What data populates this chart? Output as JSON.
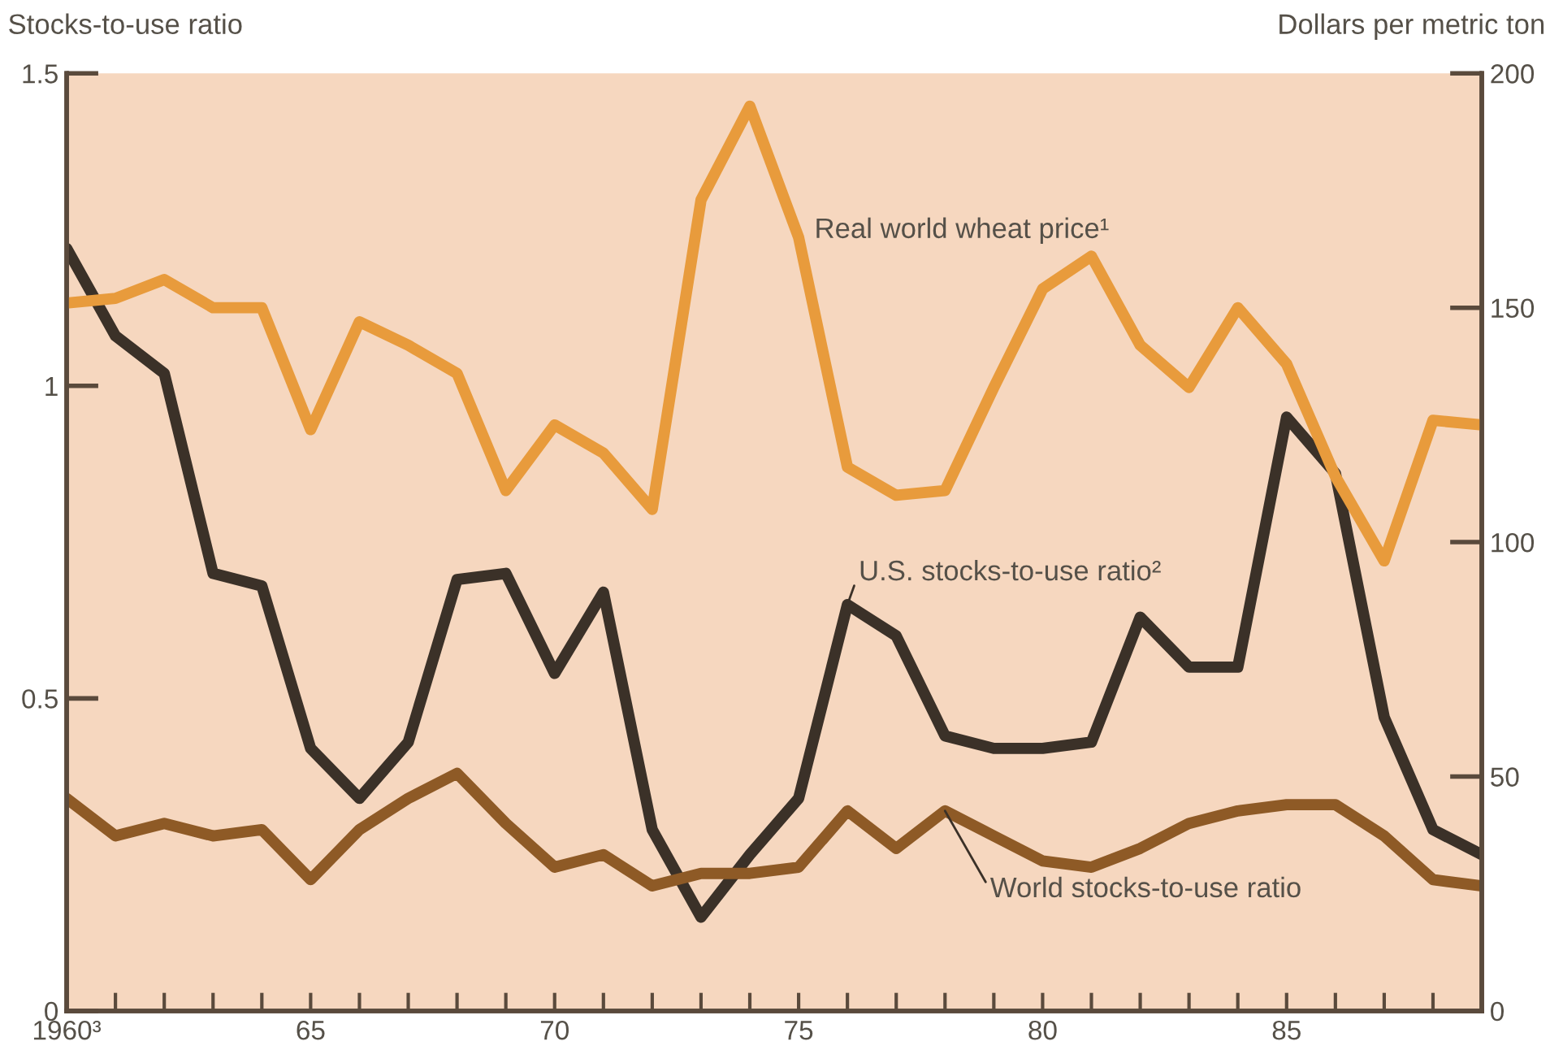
{
  "chart_data": {
    "type": "line",
    "ylabel": "Stocks-to-use ratio",
    "y2label": "Dollars per metric ton",
    "x": [
      1960,
      1961,
      1962,
      1963,
      1964,
      1965,
      1966,
      1967,
      1968,
      1969,
      1970,
      1971,
      1972,
      1973,
      1974,
      1975,
      1976,
      1977,
      1978,
      1979,
      1980,
      1981,
      1982,
      1983,
      1984,
      1985,
      1986,
      1987,
      1988,
      1989
    ],
    "series": [
      {
        "name": "Real world wheat price¹",
        "color": "#e89b3c",
        "axis": "y2",
        "values": [
          151,
          152,
          156,
          150,
          150,
          124,
          147,
          142,
          136,
          111,
          125,
          119,
          107,
          173,
          193,
          165,
          116,
          110,
          111,
          133,
          154,
          161,
          142,
          133,
          150,
          138,
          114,
          96,
          126,
          125
        ]
      },
      {
        "name": "U.S. stocks-to-use ratio²",
        "color": "#3b3128",
        "values": [
          1.22,
          1.08,
          1.02,
          0.7,
          0.68,
          0.42,
          0.34,
          0.43,
          0.69,
          0.7,
          0.54,
          0.67,
          0.29,
          0.15,
          0.25,
          0.34,
          0.65,
          0.6,
          0.44,
          0.42,
          0.42,
          0.43,
          0.63,
          0.55,
          0.55,
          0.95,
          0.86,
          0.47,
          0.29,
          0.25
        ]
      },
      {
        "name": "World stocks-to-use ratio",
        "color": "#8e5a26",
        "values": [
          0.34,
          0.28,
          0.3,
          0.28,
          0.29,
          0.21,
          0.29,
          0.34,
          0.38,
          0.3,
          0.23,
          0.25,
          0.2,
          0.22,
          0.22,
          0.23,
          0.32,
          0.26,
          0.32,
          0.28,
          0.24,
          0.23,
          0.26,
          0.3,
          0.32,
          0.33,
          0.33,
          0.28,
          0.21,
          0.2
        ]
      }
    ],
    "xlim": [
      1960,
      1989
    ],
    "xticks": [
      {
        "value": 1960,
        "label": "1960³"
      },
      {
        "value": 1961,
        "label": null
      },
      {
        "value": 1962,
        "label": null
      },
      {
        "value": 1963,
        "label": null
      },
      {
        "value": 1964,
        "label": null
      },
      {
        "value": 1965,
        "label": "65"
      },
      {
        "value": 1966,
        "label": null
      },
      {
        "value": 1967,
        "label": null
      },
      {
        "value": 1968,
        "label": null
      },
      {
        "value": 1969,
        "label": null
      },
      {
        "value": 1970,
        "label": "70"
      },
      {
        "value": 1971,
        "label": null
      },
      {
        "value": 1972,
        "label": null
      },
      {
        "value": 1973,
        "label": null
      },
      {
        "value": 1974,
        "label": null
      },
      {
        "value": 1975,
        "label": "75"
      },
      {
        "value": 1976,
        "label": null
      },
      {
        "value": 1977,
        "label": null
      },
      {
        "value": 1978,
        "label": null
      },
      {
        "value": 1979,
        "label": null
      },
      {
        "value": 1980,
        "label": "80"
      },
      {
        "value": 1981,
        "label": null
      },
      {
        "value": 1982,
        "label": null
      },
      {
        "value": 1983,
        "label": null
      },
      {
        "value": 1984,
        "label": null
      },
      {
        "value": 1985,
        "label": "85"
      },
      {
        "value": 1986,
        "label": null
      },
      {
        "value": 1987,
        "label": null
      },
      {
        "value": 1988,
        "label": null
      },
      {
        "value": 1989,
        "label": null
      }
    ],
    "ylim": [
      0,
      1.5
    ],
    "yticks": [
      0,
      0.5,
      1,
      1.5
    ],
    "y2lim": [
      0,
      200
    ],
    "y2ticks": [
      0,
      50,
      100,
      150,
      200
    ],
    "grid": false,
    "legend": false
  }
}
